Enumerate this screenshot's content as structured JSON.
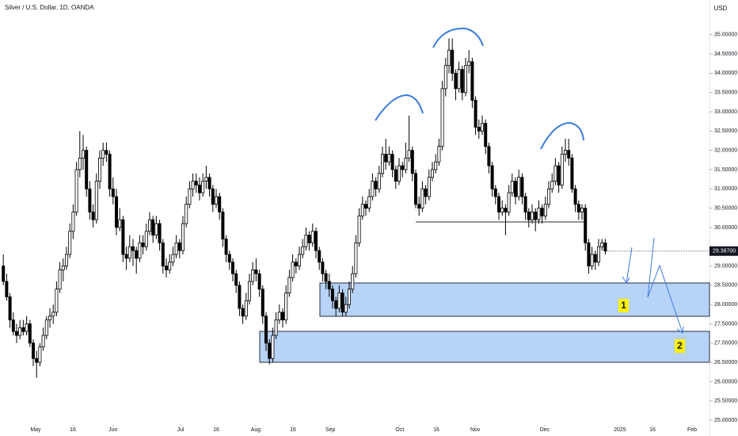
{
  "chart_data": {
    "type": "candlestick",
    "title": "Silver / U.S. Dollar, 1D, OANDA",
    "currency": "USD",
    "annotations": [
      "1",
      "2"
    ],
    "up_color": "#ffffff",
    "down_color": "#000000",
    "edge_color": "#000000",
    "last_price": {
      "value": 29.387,
      "label": "29.38700"
    },
    "xlim": [
      -1,
      212.33
    ],
    "ylim": [
      24.59,
      35.9
    ],
    "xticks": [
      {
        "value": 9.7,
        "label": "May"
      },
      {
        "value": 20.9,
        "label": "16"
      },
      {
        "value": 33,
        "label": "Jun"
      },
      {
        "value": 53.3,
        "label": "Jul"
      },
      {
        "value": 64,
        "label": "16"
      },
      {
        "value": 75.9,
        "label": "Aug"
      },
      {
        "value": 87.1,
        "label": "16"
      },
      {
        "value": 98.3,
        "label": "Sep"
      },
      {
        "value": 119.2,
        "label": "Oct"
      },
      {
        "value": 130.2,
        "label": "16"
      },
      {
        "value": 141.9,
        "label": "Nov"
      },
      {
        "value": 162.8,
        "label": "Dec"
      },
      {
        "value": 185.4,
        "label": "2025"
      },
      {
        "value": 195.2,
        "label": "16"
      },
      {
        "value": 207.1,
        "label": "Feb"
      }
    ],
    "yticks": [
      {
        "value": 25,
        "label": "25.00000"
      },
      {
        "value": 25.5,
        "label": "25.50000"
      },
      {
        "value": 26,
        "label": "26.00000"
      },
      {
        "value": 26.5,
        "label": "26.50000"
      },
      {
        "value": 27,
        "label": "27.00000"
      },
      {
        "value": 27.5,
        "label": "27.50000"
      },
      {
        "value": 28,
        "label": "28.00000"
      },
      {
        "value": 28.5,
        "label": "28.50000"
      },
      {
        "value": 29,
        "label": "29.00000"
      },
      {
        "value": 30,
        "label": "30.00000"
      },
      {
        "value": 30.5,
        "label": "30.50000"
      },
      {
        "value": 31,
        "label": "31.00000"
      },
      {
        "value": 31.5,
        "label": "31.50000"
      },
      {
        "value": 32,
        "label": "32.00000"
      },
      {
        "value": 32.5,
        "label": "32.50000"
      },
      {
        "value": 33,
        "label": "33.00000"
      },
      {
        "value": 33.5,
        "label": "33.50000"
      },
      {
        "value": 34,
        "label": "34.00000"
      },
      {
        "value": 34.5,
        "label": "34.50000"
      },
      {
        "value": 35,
        "label": "35.00000"
      }
    ],
    "ohlc": [
      [
        29.0,
        29.3,
        28.5,
        28.6
      ],
      [
        28.6,
        28.8,
        28.1,
        28.2
      ],
      [
        28.2,
        28.3,
        27.4,
        27.6
      ],
      [
        27.6,
        27.8,
        27.2,
        27.3
      ],
      [
        27.3,
        27.5,
        27.0,
        27.2
      ],
      [
        27.2,
        27.6,
        27.1,
        27.4
      ],
      [
        27.4,
        27.6,
        27.2,
        27.3
      ],
      [
        27.3,
        27.7,
        27.2,
        27.5
      ],
      [
        27.5,
        27.6,
        26.9,
        27.0
      ],
      [
        27.0,
        27.1,
        26.4,
        26.6
      ],
      [
        26.6,
        26.8,
        26.1,
        26.5
      ],
      [
        26.5,
        27.0,
        26.4,
        26.9
      ],
      [
        26.9,
        27.4,
        26.8,
        27.2
      ],
      [
        27.2,
        27.7,
        27.1,
        27.6
      ],
      [
        27.6,
        27.9,
        27.4,
        27.7
      ],
      [
        27.7,
        28.0,
        27.5,
        27.8
      ],
      [
        27.8,
        28.6,
        27.7,
        28.4
      ],
      [
        28.4,
        29.1,
        28.3,
        28.9
      ],
      [
        28.9,
        29.2,
        28.6,
        29.0
      ],
      [
        29.0,
        29.5,
        28.9,
        29.3
      ],
      [
        29.3,
        30.1,
        29.2,
        29.9
      ],
      [
        29.9,
        30.6,
        29.7,
        30.4
      ],
      [
        30.4,
        31.7,
        30.3,
        31.5
      ],
      [
        31.5,
        32.5,
        31.3,
        31.8
      ],
      [
        31.8,
        32.4,
        31.5,
        32.0
      ],
      [
        32.0,
        32.1,
        30.8,
        31.0
      ],
      [
        31.0,
        31.2,
        30.2,
        30.4
      ],
      [
        30.4,
        30.6,
        30.0,
        30.2
      ],
      [
        30.2,
        31.4,
        30.1,
        31.2
      ],
      [
        31.2,
        32.0,
        31.0,
        31.8
      ],
      [
        31.8,
        32.2,
        31.6,
        32.0
      ],
      [
        32.0,
        32.2,
        31.7,
        31.9
      ],
      [
        31.9,
        32.0,
        30.8,
        31.0
      ],
      [
        31.0,
        31.3,
        30.6,
        30.8
      ],
      [
        30.8,
        31.0,
        29.8,
        30.0
      ],
      [
        30.0,
        30.5,
        29.9,
        30.2
      ],
      [
        30.2,
        30.3,
        29.1,
        29.3
      ],
      [
        29.3,
        29.5,
        28.9,
        29.2
      ],
      [
        29.2,
        29.8,
        29.1,
        29.5
      ],
      [
        29.5,
        29.7,
        29.0,
        29.4
      ],
      [
        29.4,
        29.5,
        28.8,
        29.2
      ],
      [
        29.2,
        29.8,
        29.1,
        29.6
      ],
      [
        29.6,
        29.8,
        29.3,
        29.5
      ],
      [
        29.5,
        30.1,
        29.4,
        29.9
      ],
      [
        29.9,
        30.4,
        29.8,
        30.2
      ],
      [
        30.2,
        30.3,
        29.6,
        29.8
      ],
      [
        29.8,
        30.3,
        29.7,
        30.1
      ],
      [
        30.1,
        30.2,
        29.4,
        29.6
      ],
      [
        29.6,
        29.7,
        28.8,
        29.0
      ],
      [
        29.0,
        29.2,
        28.7,
        28.9
      ],
      [
        28.9,
        29.3,
        28.8,
        29.1
      ],
      [
        29.1,
        29.5,
        29.0,
        29.3
      ],
      [
        29.3,
        29.8,
        29.2,
        29.6
      ],
      [
        29.6,
        29.7,
        29.2,
        29.4
      ],
      [
        29.4,
        30.3,
        29.3,
        30.1
      ],
      [
        30.1,
        30.8,
        30.0,
        30.6
      ],
      [
        30.6,
        31.2,
        30.5,
        31.0
      ],
      [
        31.0,
        31.4,
        30.8,
        31.2
      ],
      [
        31.2,
        31.4,
        30.9,
        31.1
      ],
      [
        31.1,
        31.3,
        30.7,
        30.9
      ],
      [
        30.9,
        31.4,
        30.8,
        31.2
      ],
      [
        31.2,
        31.6,
        31.0,
        31.3
      ],
      [
        31.3,
        31.4,
        30.8,
        31.0
      ],
      [
        31.0,
        31.1,
        30.4,
        30.6
      ],
      [
        30.6,
        31.0,
        30.5,
        30.8
      ],
      [
        30.8,
        30.9,
        30.2,
        30.4
      ],
      [
        30.4,
        30.5,
        29.5,
        29.7
      ],
      [
        29.7,
        29.8,
        29.1,
        29.3
      ],
      [
        29.3,
        29.4,
        28.9,
        29.1
      ],
      [
        29.1,
        29.2,
        28.6,
        28.8
      ],
      [
        28.8,
        28.9,
        28.3,
        28.5
      ],
      [
        28.5,
        28.6,
        27.7,
        27.9
      ],
      [
        27.9,
        28.0,
        27.5,
        27.7
      ],
      [
        27.7,
        28.3,
        27.6,
        28.1
      ],
      [
        28.1,
        28.8,
        28.0,
        28.6
      ],
      [
        28.6,
        29.1,
        28.5,
        28.9
      ],
      [
        28.9,
        29.2,
        28.6,
        28.8
      ],
      [
        28.8,
        28.9,
        28.2,
        28.4
      ],
      [
        28.4,
        28.5,
        27.5,
        27.7
      ],
      [
        27.7,
        27.8,
        26.8,
        27.0
      ],
      [
        27.0,
        27.1,
        26.45,
        26.6
      ],
      [
        26.6,
        27.4,
        26.5,
        27.2
      ],
      [
        27.2,
        27.8,
        27.1,
        27.6
      ],
      [
        27.6,
        28.0,
        27.5,
        27.8
      ],
      [
        27.8,
        27.9,
        27.4,
        27.6
      ],
      [
        27.6,
        28.5,
        27.5,
        28.3
      ],
      [
        28.3,
        28.9,
        28.2,
        28.7
      ],
      [
        28.7,
        29.3,
        28.6,
        29.1
      ],
      [
        29.1,
        29.2,
        28.8,
        29.0
      ],
      [
        29.0,
        29.5,
        28.9,
        29.3
      ],
      [
        29.3,
        29.7,
        29.2,
        29.5
      ],
      [
        29.5,
        30.0,
        29.4,
        29.8
      ],
      [
        29.8,
        29.9,
        29.4,
        29.6
      ],
      [
        29.6,
        30.1,
        29.5,
        29.9
      ],
      [
        29.9,
        30.0,
        29.2,
        29.4
      ],
      [
        29.4,
        29.5,
        28.9,
        29.1
      ],
      [
        29.1,
        29.2,
        28.6,
        28.8
      ],
      [
        28.8,
        28.9,
        28.4,
        28.6
      ],
      [
        28.6,
        28.8,
        28.2,
        28.4
      ],
      [
        28.4,
        28.5,
        27.9,
        28.1
      ],
      [
        28.1,
        28.2,
        27.7,
        27.9
      ],
      [
        27.9,
        28.5,
        27.8,
        28.3
      ],
      [
        28.3,
        28.4,
        27.7,
        27.8
      ],
      [
        27.8,
        28.2,
        27.7,
        28.0
      ],
      [
        28.0,
        28.6,
        27.9,
        28.4
      ],
      [
        28.4,
        29.0,
        28.3,
        28.8
      ],
      [
        28.8,
        29.8,
        28.7,
        29.6
      ],
      [
        29.6,
        30.5,
        29.5,
        30.3
      ],
      [
        30.3,
        30.8,
        30.2,
        30.6
      ],
      [
        30.6,
        30.7,
        30.3,
        30.5
      ],
      [
        30.5,
        31.0,
        30.4,
        30.8
      ],
      [
        30.8,
        31.4,
        30.7,
        31.2
      ],
      [
        31.2,
        31.3,
        30.8,
        31.0
      ],
      [
        31.0,
        31.6,
        30.9,
        31.4
      ],
      [
        31.4,
        32.1,
        31.3,
        31.9
      ],
      [
        31.9,
        32.3,
        31.5,
        31.7
      ],
      [
        31.7,
        32.1,
        31.6,
        31.9
      ],
      [
        31.9,
        32.0,
        31.3,
        31.5
      ],
      [
        31.5,
        31.6,
        31.0,
        31.2
      ],
      [
        31.2,
        31.8,
        31.1,
        31.6
      ],
      [
        31.6,
        31.7,
        31.3,
        31.5
      ],
      [
        31.5,
        32.2,
        31.4,
        31.8
      ],
      [
        31.8,
        32.9,
        31.7,
        32.0
      ],
      [
        32.0,
        32.1,
        31.2,
        31.4
      ],
      [
        31.4,
        31.5,
        30.5,
        30.6
      ],
      [
        30.6,
        30.8,
        30.3,
        30.5
      ],
      [
        30.5,
        31.2,
        30.4,
        31.0
      ],
      [
        31.0,
        31.1,
        30.6,
        30.8
      ],
      [
        30.8,
        31.5,
        30.7,
        31.3
      ],
      [
        31.3,
        31.7,
        31.2,
        31.5
      ],
      [
        31.5,
        31.9,
        31.4,
        31.7
      ],
      [
        31.7,
        32.3,
        31.6,
        32.1
      ],
      [
        32.1,
        33.8,
        32.0,
        33.6
      ],
      [
        33.6,
        34.4,
        33.4,
        34.2
      ],
      [
        34.2,
        34.9,
        34.0,
        34.6
      ],
      [
        34.6,
        34.9,
        33.8,
        34.0
      ],
      [
        34.0,
        34.1,
        33.3,
        33.6
      ],
      [
        33.6,
        34.3,
        33.5,
        34.1
      ],
      [
        34.1,
        34.2,
        33.3,
        33.5
      ],
      [
        33.5,
        34.4,
        33.4,
        34.2
      ],
      [
        34.2,
        34.6,
        34.0,
        34.3
      ],
      [
        34.3,
        34.4,
        33.1,
        33.3
      ],
      [
        33.3,
        33.4,
        32.4,
        32.6
      ],
      [
        32.6,
        32.8,
        32.3,
        32.5
      ],
      [
        32.5,
        32.9,
        32.4,
        32.7
      ],
      [
        32.7,
        32.8,
        31.9,
        32.1
      ],
      [
        32.1,
        32.2,
        31.4,
        31.6
      ],
      [
        31.6,
        31.7,
        30.8,
        31.0
      ],
      [
        31.0,
        31.1,
        30.6,
        30.8
      ],
      [
        30.8,
        30.9,
        30.2,
        30.4
      ],
      [
        30.4,
        30.7,
        30.3,
        30.5
      ],
      [
        30.5,
        30.6,
        29.8,
        30.4
      ],
      [
        30.4,
        31.1,
        30.3,
        30.9
      ],
      [
        30.9,
        31.4,
        30.8,
        31.2
      ],
      [
        31.2,
        31.3,
        30.6,
        30.8
      ],
      [
        30.8,
        31.5,
        30.7,
        31.3
      ],
      [
        31.3,
        31.4,
        30.6,
        30.8
      ],
      [
        30.8,
        30.9,
        30.2,
        30.4
      ],
      [
        30.4,
        30.5,
        30.0,
        30.2
      ],
      [
        30.2,
        30.6,
        30.1,
        30.4
      ],
      [
        30.4,
        30.5,
        29.9,
        30.2
      ],
      [
        30.2,
        30.7,
        30.1,
        30.5
      ],
      [
        30.5,
        30.6,
        30.1,
        30.3
      ],
      [
        30.3,
        30.8,
        30.2,
        30.6
      ],
      [
        30.6,
        31.2,
        30.5,
        31.0
      ],
      [
        31.0,
        31.4,
        30.9,
        31.2
      ],
      [
        31.2,
        31.8,
        31.1,
        31.6
      ],
      [
        31.6,
        31.7,
        30.9,
        31.1
      ],
      [
        31.1,
        32.1,
        31.0,
        31.9
      ],
      [
        31.9,
        32.3,
        31.7,
        32.0
      ],
      [
        32.0,
        32.3,
        31.6,
        31.8
      ],
      [
        31.8,
        31.9,
        30.9,
        31.0
      ],
      [
        31.0,
        31.1,
        30.4,
        30.6
      ],
      [
        30.6,
        30.7,
        30.2,
        30.4
      ],
      [
        30.4,
        30.6,
        30.2,
        30.5
      ],
      [
        30.5,
        30.6,
        29.4,
        29.6
      ],
      [
        29.6,
        29.7,
        28.8,
        29.0
      ],
      [
        29.0,
        29.5,
        28.9,
        29.3
      ],
      [
        29.3,
        29.4,
        28.9,
        29.1
      ],
      [
        29.1,
        29.7,
        29.0,
        29.5
      ],
      [
        29.5,
        29.7,
        29.4,
        29.6
      ],
      [
        29.6,
        29.7,
        29.3,
        29.387
      ]
    ]
  }
}
